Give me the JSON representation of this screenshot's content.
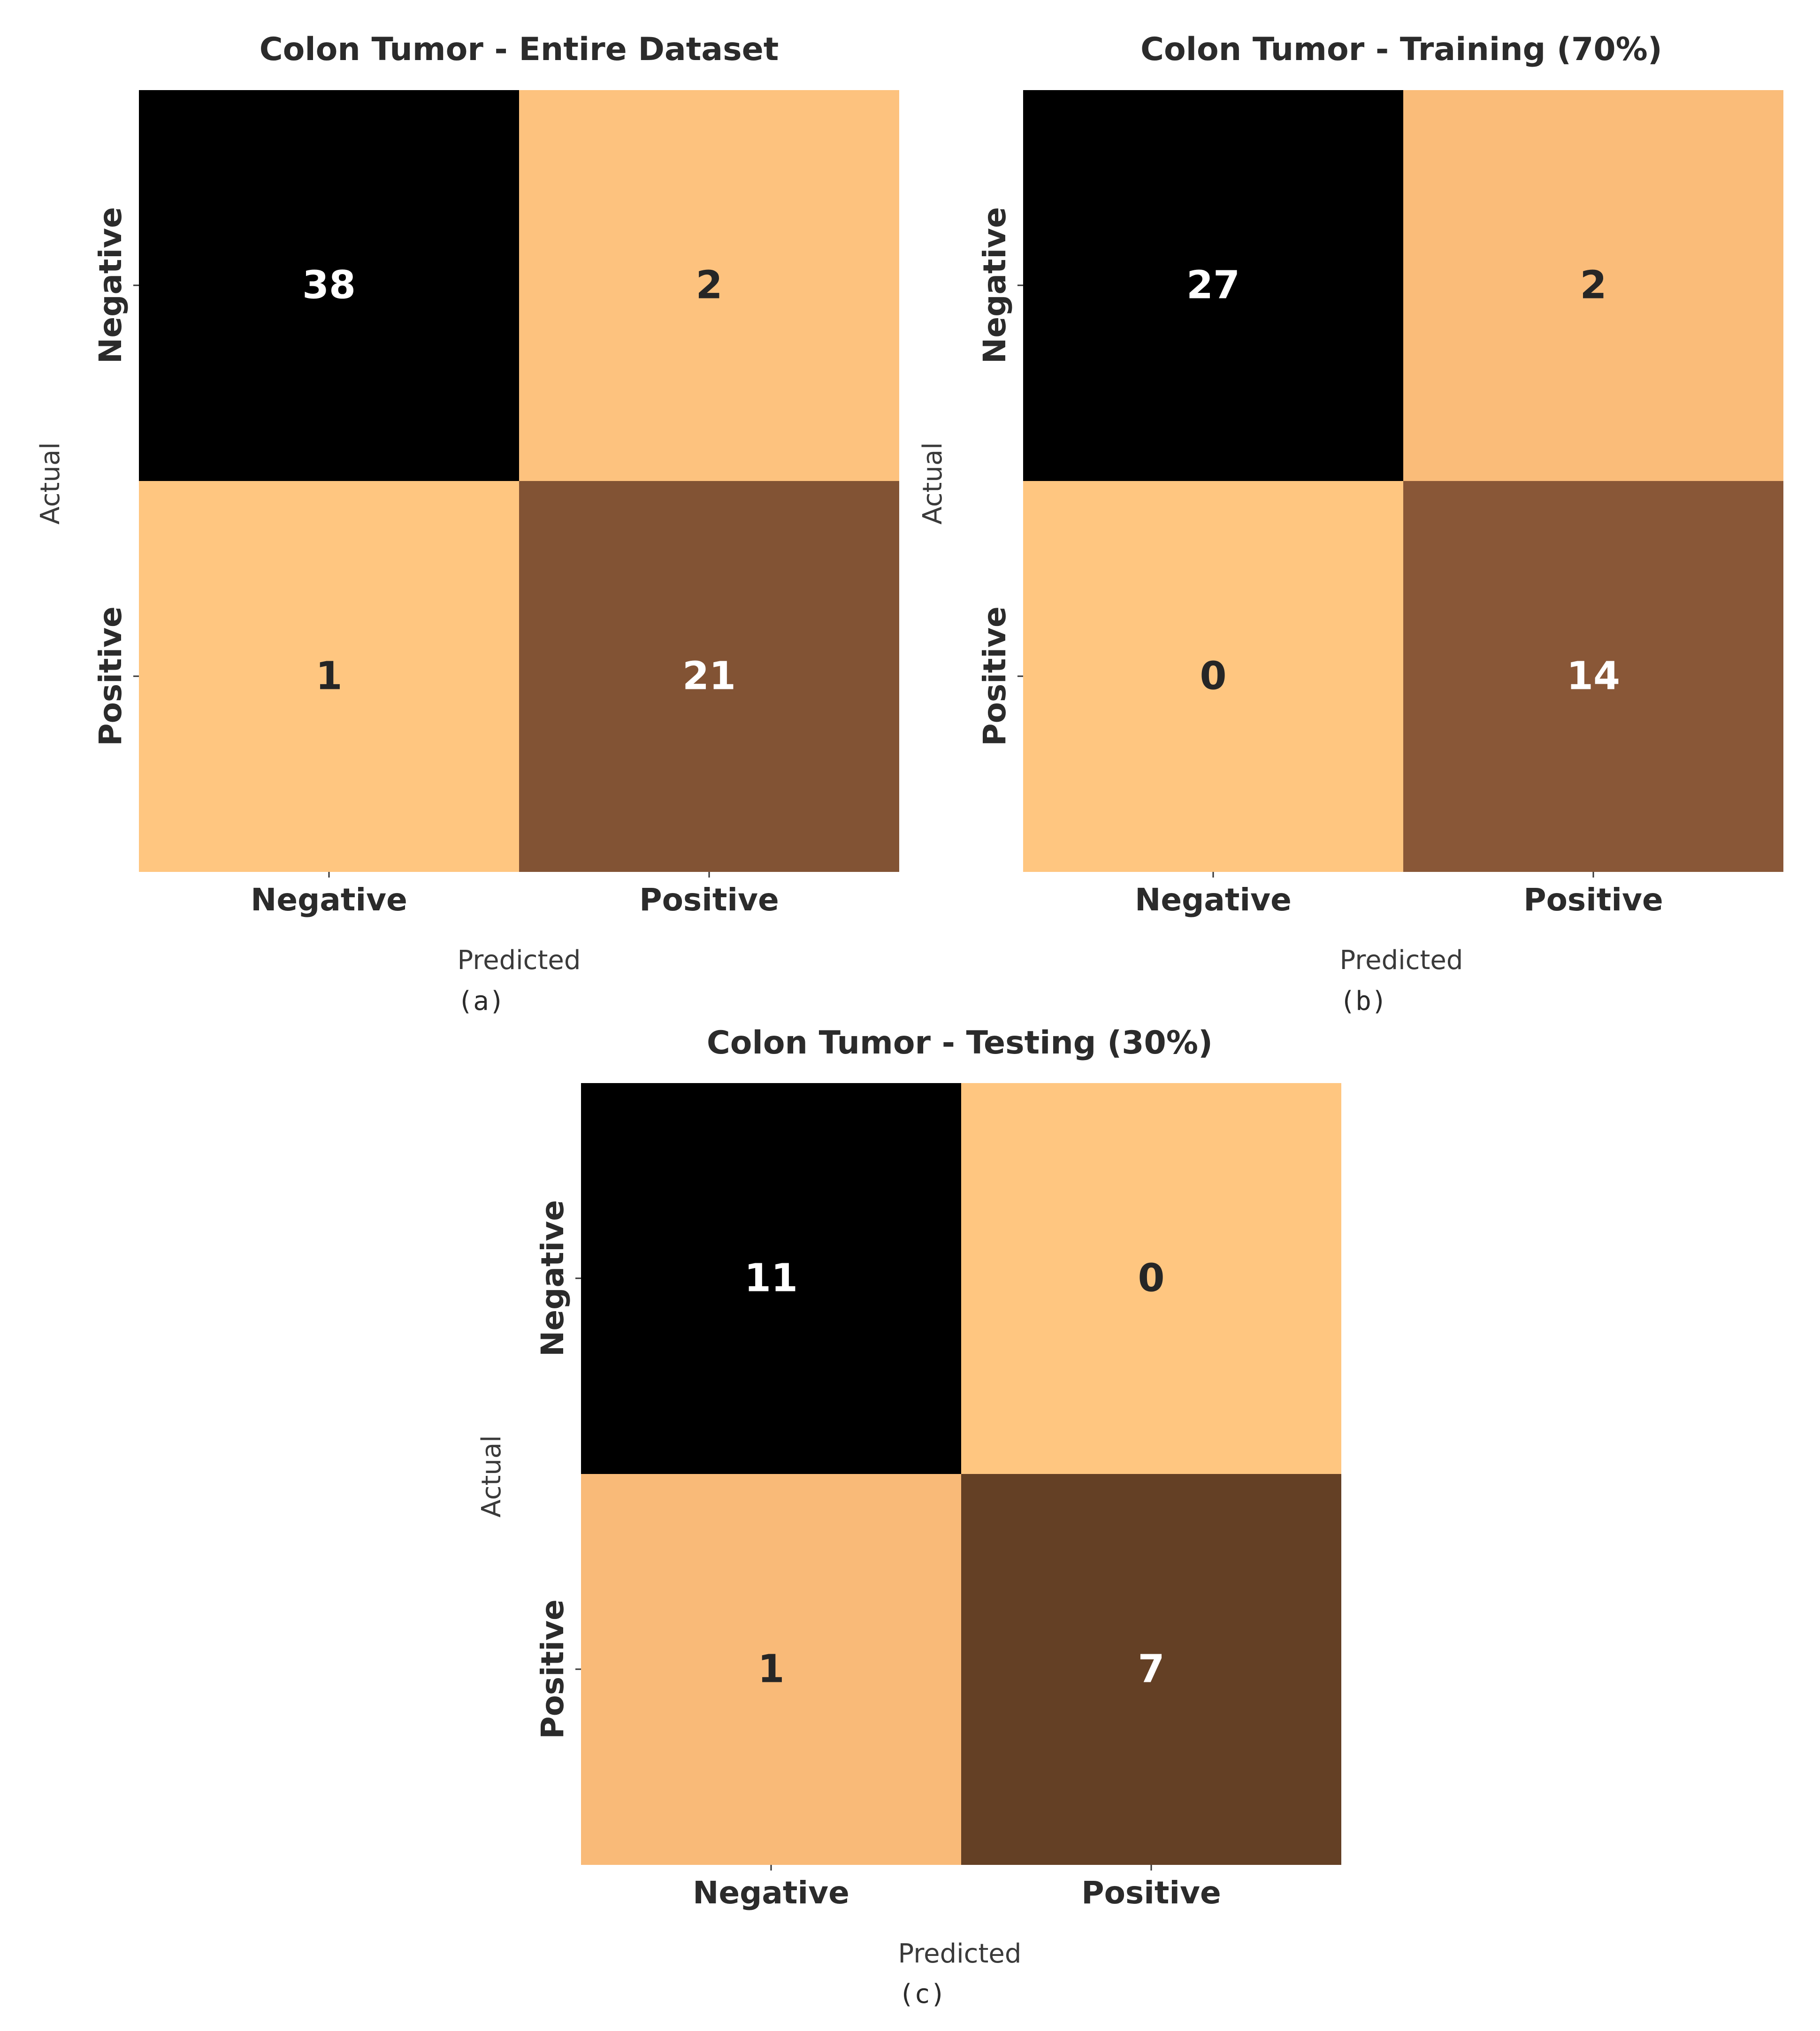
{
  "chart_data": [
    {
      "type": "heatmap",
      "title": "Colon Tumor - Entire Dataset",
      "xlabel": "Predicted",
      "ylabel": "Actual",
      "x_categories": [
        "Negative",
        "Positive"
      ],
      "y_categories": [
        "Negative",
        "Positive"
      ],
      "matrix": [
        [
          38,
          2
        ],
        [
          1,
          21
        ]
      ],
      "caption": "(a)"
    },
    {
      "type": "heatmap",
      "title": "Colon Tumor - Training (70%)",
      "xlabel": "Predicted",
      "ylabel": "Actual",
      "x_categories": [
        "Negative",
        "Positive"
      ],
      "y_categories": [
        "Negative",
        "Positive"
      ],
      "matrix": [
        [
          27,
          2
        ],
        [
          0,
          14
        ]
      ],
      "caption": "(b)"
    },
    {
      "type": "heatmap",
      "title": "Colon Tumor - Testing (30%)",
      "xlabel": "Predicted",
      "ylabel": "Actual",
      "x_categories": [
        "Negative",
        "Positive"
      ],
      "y_categories": [
        "Negative",
        "Positive"
      ],
      "matrix": [
        [
          11,
          0
        ],
        [
          1,
          7
        ]
      ],
      "caption": "(c)"
    }
  ],
  "colormap": [
    "#000000",
    "#2e1d10",
    "#5a3a20",
    "#8f5b3a",
    "#c58658",
    "#f4b071",
    "#ffc680"
  ],
  "text_colors": {
    "dark_cell": "#ffffff",
    "light_cell": "#262626"
  }
}
